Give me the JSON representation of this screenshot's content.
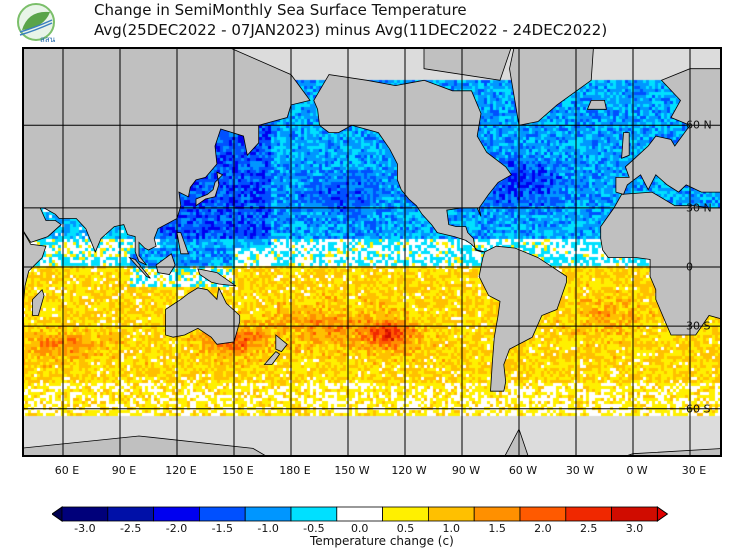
{
  "logo": {
    "text": "สสน"
  },
  "title": {
    "line1": "Change in SemiMonthly Sea Surface Temperature",
    "line2": "Avg(25DEC2022 - 07JAN2023) minus Avg(11DEC2022 - 24DEC2022)"
  },
  "map": {
    "lon_labels": [
      "60 E",
      "90 E",
      "120 E",
      "150 E",
      "180 E",
      "150 W",
      "120 W",
      "90 W",
      "60 W",
      "30 W",
      "0 W",
      "30 E"
    ],
    "lon_values": [
      60,
      90,
      120,
      150,
      180,
      210,
      240,
      270,
      300,
      330,
      360,
      390
    ],
    "lat_labels": [
      "60 N",
      "30 N",
      "0",
      "30 S",
      "60 S"
    ],
    "lat_values": [
      60,
      30,
      0,
      -30,
      -60
    ],
    "land_color": "#c0c0c0",
    "ice_color": "#dcdcdc"
  },
  "colorbar": {
    "title": "Temperature change  (c)",
    "labels": [
      "-3.0",
      "-2.5",
      "-2.0",
      "-1.5",
      "-1.0",
      "-0.5",
      "0.0",
      "0.5",
      "1.0",
      "1.5",
      "2.0",
      "2.5",
      "3.0"
    ],
    "colors": [
      "#00007a",
      "#0010a8",
      "#0000f0",
      "#0050ff",
      "#0096ff",
      "#00e0ff",
      "#ffffff",
      "#fff000",
      "#ffc000",
      "#ff9000",
      "#ff5a00",
      "#f02800",
      "#d00c00"
    ],
    "under_color": "#000050",
    "over_color": "#e00000"
  }
}
